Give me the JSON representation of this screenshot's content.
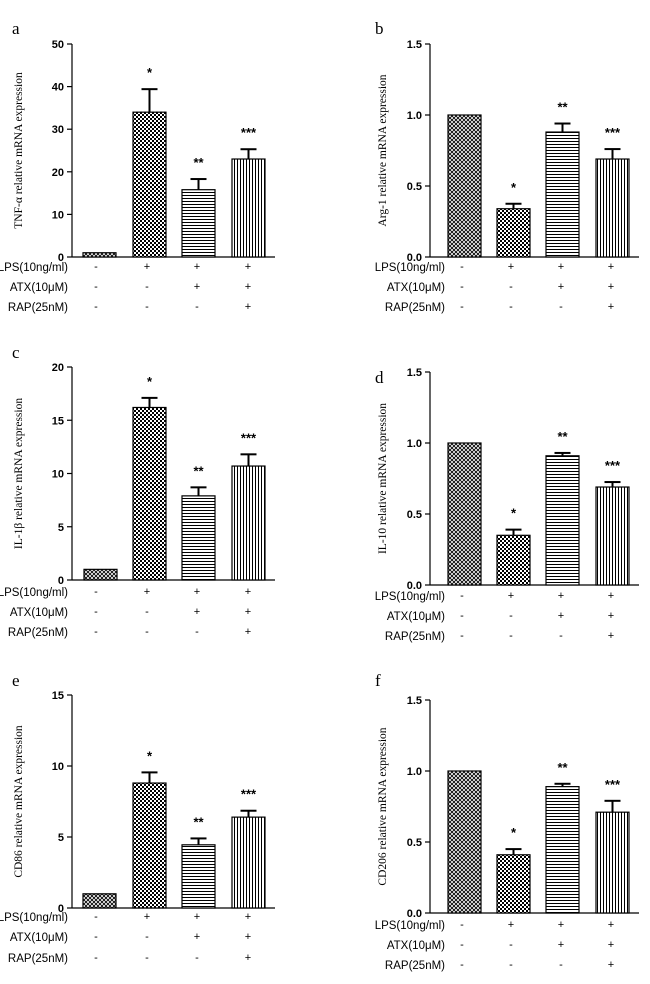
{
  "figure": {
    "condition_labels": [
      "LPS(10ng/ml)",
      "ATX(10μM)",
      "RAP(25nM)"
    ],
    "condition_signs": [
      [
        "-",
        "+",
        "+",
        "+"
      ],
      [
        "-",
        "-",
        "+",
        "+"
      ],
      [
        "-",
        "-",
        "-",
        "+"
      ]
    ],
    "bar_patterns": [
      "crosshatch",
      "checker",
      "horizontal",
      "vertical"
    ]
  },
  "chart_data": [
    {
      "type": "bar",
      "panel": "a",
      "ylabel": "TNF-α  relative  mRNA expression",
      "ylim": [
        0,
        50
      ],
      "yticks": [
        "0",
        "10",
        "20",
        "30",
        "40",
        "50"
      ],
      "values": [
        1.0,
        34.0,
        15.8,
        23.0
      ],
      "errors": [
        0,
        5.4,
        2.5,
        2.3
      ],
      "annotations": [
        "",
        "*",
        "**",
        "***"
      ]
    },
    {
      "type": "bar",
      "panel": "b",
      "ylabel": "Arg-1 relative  mRNA expression",
      "ylim": [
        0,
        1.5
      ],
      "yticks": [
        "0.0",
        "0.5",
        "1.0",
        "1.5"
      ],
      "values": [
        1.0,
        0.34,
        0.88,
        0.69
      ],
      "errors": [
        0,
        0.035,
        0.06,
        0.07
      ],
      "annotations": [
        "",
        "*",
        "**",
        "***"
      ]
    },
    {
      "type": "bar",
      "panel": "c",
      "ylabel": "IL-1β  relative  mRNA expression",
      "ylim": [
        0,
        20
      ],
      "yticks": [
        "0",
        "5",
        "10",
        "15",
        "20"
      ],
      "values": [
        1.0,
        16.2,
        7.9,
        10.7
      ],
      "errors": [
        0,
        0.9,
        0.8,
        1.1
      ],
      "annotations": [
        "",
        "*",
        "**",
        "***"
      ]
    },
    {
      "type": "bar",
      "panel": "d",
      "ylabel": "IL-10 relative  mRNA expression",
      "ylim": [
        0,
        1.5
      ],
      "yticks": [
        "0.0",
        "0.5",
        "1.0",
        "1.5"
      ],
      "values": [
        1.0,
        0.35,
        0.91,
        0.69
      ],
      "errors": [
        0,
        0.04,
        0.02,
        0.035
      ],
      "annotations": [
        "",
        "*",
        "**",
        "***"
      ]
    },
    {
      "type": "bar",
      "panel": "e",
      "ylabel": "CD86 relative  mRNA expression",
      "ylim": [
        0,
        15
      ],
      "yticks": [
        "0",
        "5",
        "10",
        "15"
      ],
      "values": [
        1.0,
        8.8,
        4.45,
        6.4
      ],
      "errors": [
        0,
        0.75,
        0.45,
        0.45
      ],
      "annotations": [
        "",
        "*",
        "**",
        "***"
      ]
    },
    {
      "type": "bar",
      "panel": "f",
      "ylabel": "CD206 relative  mRNA expression",
      "ylim": [
        0,
        1.5
      ],
      "yticks": [
        "0.0",
        "0.5",
        "1.0",
        "1.5"
      ],
      "values": [
        1.0,
        0.41,
        0.89,
        0.71
      ],
      "errors": [
        0,
        0.04,
        0.02,
        0.08
      ],
      "annotations": [
        "",
        "*",
        "**",
        "***"
      ]
    }
  ]
}
